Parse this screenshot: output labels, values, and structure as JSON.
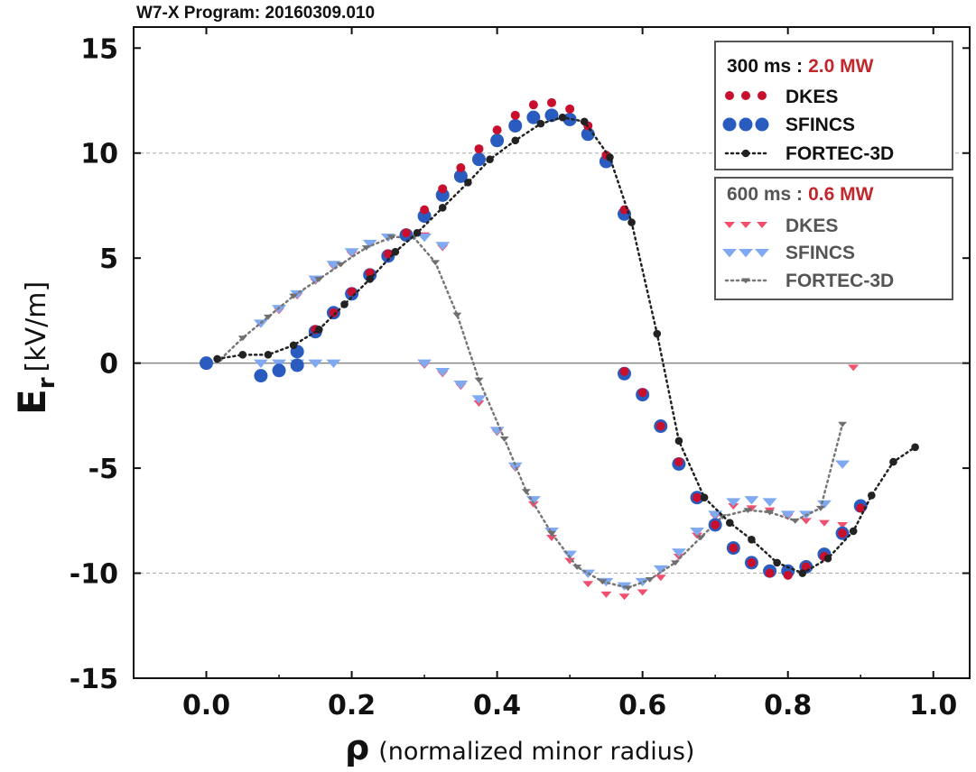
{
  "chart_data": {
    "type": "scatter",
    "title": "W7-X Program: 20160309.010",
    "xlabel_symbol": "ρ",
    "xlabel_text": "(normalized minor radius)",
    "ylabel_symbol": "E",
    "ylabel_sub": "r",
    "ylabel_unit": "[kV/m]",
    "xlim": [
      -0.1,
      1.05
    ],
    "ylim": [
      -15,
      16
    ],
    "xticks": [
      "0.0",
      "0.2",
      "0.4",
      "0.6",
      "0.8",
      "1.0"
    ],
    "yticks": [
      "15",
      "10",
      "5",
      "0",
      "-5",
      "-10",
      "-15"
    ],
    "grid": "dashed horizontal at ±10",
    "legend_groups": [
      {
        "time": "300 ms :",
        "power": "2.0 MW",
        "time_color": "#111111",
        "power_color": "#c0282d",
        "entries": [
          "DKES",
          "SFINCS",
          "FORTEC-3D"
        ]
      },
      {
        "time": "600 ms :",
        "power": "0.6 MW",
        "time_color": "#555555",
        "power_color": "#c0282d",
        "entries": [
          "DKES",
          "SFINCS",
          "FORTEC-3D"
        ]
      }
    ],
    "series": [
      {
        "name": "DKES",
        "group": "300 ms",
        "marker": "circle-small",
        "color": "#c8102e",
        "points": [
          [
            0.15,
            1.6
          ],
          [
            0.175,
            2.4
          ],
          [
            0.2,
            3.4
          ],
          [
            0.225,
            4.3
          ],
          [
            0.25,
            5.2
          ],
          [
            0.275,
            6.2
          ],
          [
            0.3,
            7.3
          ],
          [
            0.325,
            8.3
          ],
          [
            0.35,
            9.3
          ],
          [
            0.375,
            10.2
          ],
          [
            0.4,
            11.1
          ],
          [
            0.425,
            11.8
          ],
          [
            0.45,
            12.3
          ],
          [
            0.475,
            12.4
          ],
          [
            0.5,
            12.1
          ],
          [
            0.525,
            11.3
          ],
          [
            0.55,
            9.9
          ],
          [
            0.575,
            7.3
          ],
          [
            0.575,
            -0.4
          ],
          [
            0.6,
            -1.4
          ],
          [
            0.625,
            -3.0
          ],
          [
            0.65,
            -4.7
          ],
          [
            0.675,
            -6.4
          ],
          [
            0.7,
            -7.7
          ],
          [
            0.725,
            -8.8
          ],
          [
            0.75,
            -9.5
          ],
          [
            0.775,
            -10.0
          ],
          [
            0.8,
            -10.1
          ],
          [
            0.825,
            -9.7
          ],
          [
            0.85,
            -9.2
          ],
          [
            0.875,
            -8.1
          ],
          [
            0.9,
            -6.9
          ]
        ]
      },
      {
        "name": "SFINCS",
        "group": "300 ms",
        "marker": "circle-large",
        "color": "#2a5cbf",
        "points": [
          [
            0.0,
            0.0
          ],
          [
            0.075,
            -0.6
          ],
          [
            0.1,
            -0.35
          ],
          [
            0.125,
            -0.1
          ],
          [
            0.125,
            0.55
          ],
          [
            0.15,
            1.5
          ],
          [
            0.175,
            2.4
          ],
          [
            0.2,
            3.3
          ],
          [
            0.225,
            4.2
          ],
          [
            0.25,
            5.1
          ],
          [
            0.275,
            6.1
          ],
          [
            0.3,
            7.0
          ],
          [
            0.325,
            8.0
          ],
          [
            0.35,
            8.9
          ],
          [
            0.375,
            9.7
          ],
          [
            0.4,
            10.6
          ],
          [
            0.425,
            11.3
          ],
          [
            0.45,
            11.7
          ],
          [
            0.475,
            11.8
          ],
          [
            0.5,
            11.6
          ],
          [
            0.525,
            10.9
          ],
          [
            0.55,
            9.6
          ],
          [
            0.575,
            7.1
          ],
          [
            0.575,
            -0.5
          ],
          [
            0.6,
            -1.5
          ],
          [
            0.625,
            -3.0
          ],
          [
            0.65,
            -4.8
          ],
          [
            0.675,
            -6.4
          ],
          [
            0.7,
            -7.7
          ],
          [
            0.725,
            -8.8
          ],
          [
            0.75,
            -9.5
          ],
          [
            0.775,
            -9.9
          ],
          [
            0.8,
            -9.9
          ],
          [
            0.825,
            -9.7
          ],
          [
            0.85,
            -9.1
          ],
          [
            0.875,
            -8.1
          ],
          [
            0.9,
            -6.8
          ]
        ]
      },
      {
        "name": "FORTEC-3D",
        "group": "300 ms",
        "marker": "dot-line",
        "color": "#222222",
        "points": [
          [
            0.015,
            0.2
          ],
          [
            0.05,
            0.4
          ],
          [
            0.085,
            0.4
          ],
          [
            0.12,
            0.85
          ],
          [
            0.155,
            1.6
          ],
          [
            0.19,
            2.8
          ],
          [
            0.225,
            4.0
          ],
          [
            0.26,
            5.3
          ],
          [
            0.29,
            6.2
          ],
          [
            0.325,
            7.4
          ],
          [
            0.36,
            8.6
          ],
          [
            0.39,
            9.7
          ],
          [
            0.425,
            10.6
          ],
          [
            0.46,
            11.4
          ],
          [
            0.49,
            11.7
          ],
          [
            0.52,
            11.5
          ],
          [
            0.555,
            9.8
          ],
          [
            0.585,
            6.7
          ],
          [
            0.62,
            1.4
          ],
          [
            0.65,
            -3.7
          ],
          [
            0.685,
            -6.4
          ],
          [
            0.72,
            -7.6
          ],
          [
            0.75,
            -8.4
          ],
          [
            0.785,
            -9.5
          ],
          [
            0.82,
            -10.0
          ],
          [
            0.855,
            -9.3
          ],
          [
            0.89,
            -8.0
          ],
          [
            0.915,
            -6.3
          ],
          [
            0.945,
            -4.7
          ],
          [
            0.975,
            -4.0
          ]
        ]
      },
      {
        "name": "DKES",
        "group": "600 ms",
        "marker": "triangle-small",
        "color": "#f0506e",
        "points": [
          [
            0.075,
            0.0
          ],
          [
            0.1,
            0.0
          ],
          [
            0.125,
            0.0
          ],
          [
            0.15,
            0.0
          ],
          [
            0.175,
            0.0
          ],
          [
            0.3,
            -0.1
          ],
          [
            0.325,
            -0.5
          ],
          [
            0.35,
            -1.1
          ],
          [
            0.375,
            -1.9
          ],
          [
            0.4,
            -3.3
          ],
          [
            0.425,
            -5.0
          ],
          [
            0.45,
            -6.7
          ],
          [
            0.475,
            -8.3
          ],
          [
            0.5,
            -9.4
          ],
          [
            0.525,
            -10.5
          ],
          [
            0.55,
            -11.0
          ],
          [
            0.575,
            -11.1
          ],
          [
            0.6,
            -10.9
          ],
          [
            0.625,
            -10.2
          ],
          [
            0.65,
            -9.2
          ],
          [
            0.675,
            -8.2
          ],
          [
            0.7,
            -7.3
          ],
          [
            0.725,
            -6.8
          ],
          [
            0.75,
            -6.9
          ],
          [
            0.775,
            -7.0
          ],
          [
            0.8,
            -7.3
          ],
          [
            0.825,
            -7.5
          ],
          [
            0.85,
            -7.6
          ],
          [
            0.875,
            -7.7
          ],
          [
            0.89,
            -0.2
          ],
          [
            0.075,
            1.9
          ],
          [
            0.1,
            2.5
          ],
          [
            0.125,
            3.2
          ],
          [
            0.15,
            3.9
          ],
          [
            0.175,
            4.6
          ],
          [
            0.2,
            5.2
          ],
          [
            0.225,
            5.7
          ],
          [
            0.25,
            6.0
          ],
          [
            0.3,
            6.1
          ],
          [
            0.325,
            5.5
          ]
        ]
      },
      {
        "name": "SFINCS",
        "group": "600 ms",
        "marker": "triangle-large",
        "color": "#7fa9f0",
        "points": [
          [
            0.075,
            0.0
          ],
          [
            0.1,
            0.0
          ],
          [
            0.125,
            0.0
          ],
          [
            0.15,
            0.0
          ],
          [
            0.175,
            0.0
          ],
          [
            0.3,
            0.0
          ],
          [
            0.325,
            -0.4
          ],
          [
            0.35,
            -1.0
          ],
          [
            0.375,
            -1.7
          ],
          [
            0.4,
            -3.2
          ],
          [
            0.425,
            -4.9
          ],
          [
            0.45,
            -6.5
          ],
          [
            0.475,
            -8.0
          ],
          [
            0.5,
            -9.1
          ],
          [
            0.525,
            -10.0
          ],
          [
            0.55,
            -10.4
          ],
          [
            0.575,
            -10.6
          ],
          [
            0.6,
            -10.4
          ],
          [
            0.625,
            -9.8
          ],
          [
            0.65,
            -9.0
          ],
          [
            0.675,
            -8.0
          ],
          [
            0.7,
            -7.2
          ],
          [
            0.725,
            -6.6
          ],
          [
            0.75,
            -6.5
          ],
          [
            0.775,
            -6.6
          ],
          [
            0.8,
            -7.2
          ],
          [
            0.825,
            -7.2
          ],
          [
            0.85,
            -6.7
          ],
          [
            0.875,
            -4.8
          ],
          [
            0.075,
            1.9
          ],
          [
            0.1,
            2.6
          ],
          [
            0.125,
            3.3
          ],
          [
            0.15,
            4.0
          ],
          [
            0.175,
            4.7
          ],
          [
            0.2,
            5.3
          ],
          [
            0.225,
            5.7
          ],
          [
            0.25,
            6.0
          ],
          [
            0.3,
            6.0
          ],
          [
            0.325,
            5.6
          ]
        ]
      },
      {
        "name": "FORTEC-3D",
        "group": "600 ms",
        "marker": "triangle-line",
        "color": "#6e6e6e",
        "points": [
          [
            0.02,
            0.2
          ],
          [
            0.05,
            1.2
          ],
          [
            0.085,
            2.2
          ],
          [
            0.12,
            3.2
          ],
          [
            0.155,
            4.0
          ],
          [
            0.185,
            4.7
          ],
          [
            0.22,
            5.5
          ],
          [
            0.255,
            6.0
          ],
          [
            0.285,
            6.0
          ],
          [
            0.315,
            4.8
          ],
          [
            0.345,
            2.3
          ],
          [
            0.375,
            -0.8
          ],
          [
            0.41,
            -3.6
          ],
          [
            0.44,
            -6.1
          ],
          [
            0.475,
            -8.1
          ],
          [
            0.51,
            -9.7
          ],
          [
            0.545,
            -10.4
          ],
          [
            0.58,
            -10.7
          ],
          [
            0.61,
            -10.3
          ],
          [
            0.645,
            -9.5
          ],
          [
            0.68,
            -8.3
          ],
          [
            0.71,
            -7.3
          ],
          [
            0.745,
            -7.0
          ],
          [
            0.775,
            -7.1
          ],
          [
            0.81,
            -7.5
          ],
          [
            0.845,
            -6.9
          ],
          [
            0.875,
            -2.9
          ]
        ]
      }
    ]
  }
}
